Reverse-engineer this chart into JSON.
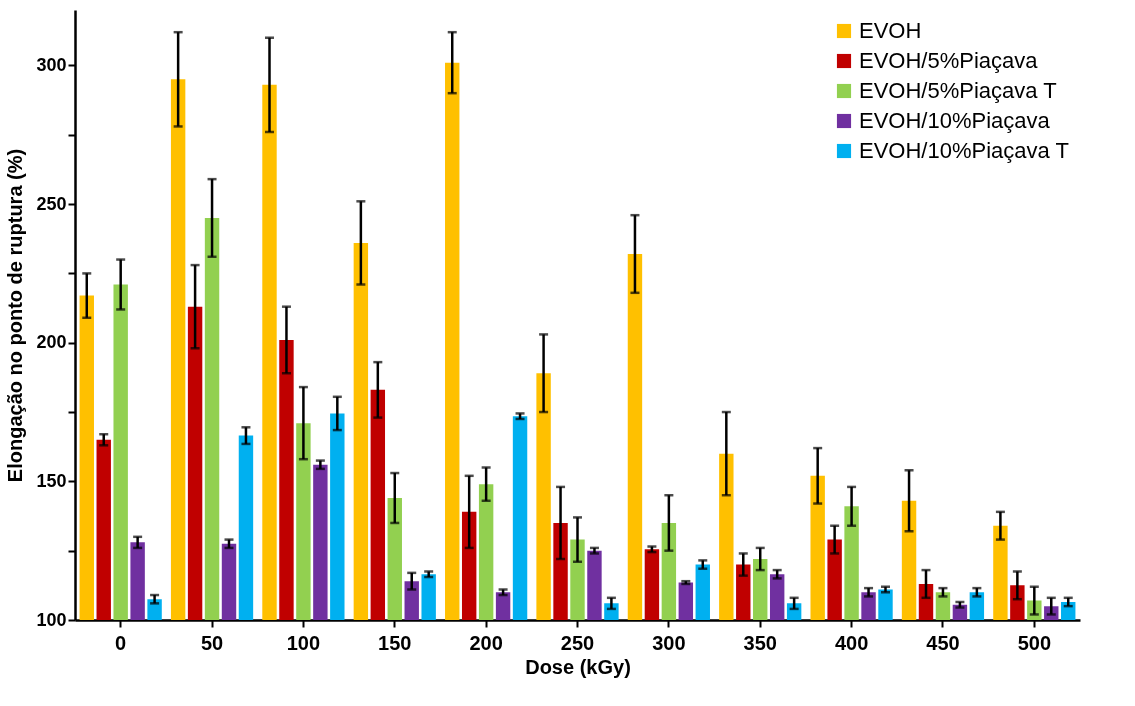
{
  "chart_data": {
    "type": "bar",
    "xlabel": "Dose (kGy)",
    "ylabel": "Elongação no ponto de ruptura (%)",
    "categories": [
      "0",
      "50",
      "100",
      "150",
      "200",
      "250",
      "300",
      "350",
      "400",
      "450",
      "500"
    ],
    "ylim": [
      100,
      320
    ],
    "yticks": [
      100,
      {
        "value": 125,
        "label": null
      },
      150,
      {
        "value": 175,
        "label": null
      },
      200,
      {
        "value": 225,
        "label": null
      },
      250,
      {
        "value": 275,
        "label": null
      },
      300
    ],
    "grid": false,
    "legend": "top right",
    "series": [
      {
        "name": "EVOH",
        "color": "#ffc000",
        "values": [
          217,
          295,
          293,
          236,
          301,
          189,
          232,
          160,
          152,
          143,
          134
        ],
        "errors": [
          8,
          17,
          17,
          15,
          11,
          14,
          14,
          15,
          10,
          11,
          5
        ]
      },
      {
        "name": "EVOH/5%Piaçava",
        "color": "#c00000",
        "values": [
          165,
          213,
          201,
          183,
          139,
          135,
          125.5,
          120,
          129,
          113,
          112.5
        ],
        "errors": [
          2,
          15,
          12,
          10,
          13,
          13,
          1,
          4,
          5,
          5,
          5
        ]
      },
      {
        "name": "EVOH/5%Piaçava T",
        "color": "#92d050",
        "values": [
          221,
          245,
          171,
          144,
          149,
          129,
          135,
          122,
          141,
          110,
          107
        ],
        "errors": [
          9,
          14,
          13,
          9,
          6,
          8,
          10,
          4,
          7,
          1.5,
          5
        ]
      },
      {
        "name": "EVOH/10%Piaçava",
        "color": "#7030a0",
        "values": [
          128,
          127.5,
          156,
          114,
          110,
          125,
          113.5,
          116.5,
          110,
          105.5,
          105
        ],
        "errors": [
          2,
          1.5,
          1.5,
          3,
          1,
          1,
          0.5,
          1.5,
          1.5,
          1,
          3
        ]
      },
      {
        "name": "EVOH/10%Piaçava T",
        "color": "#00b0f0",
        "values": [
          107.5,
          166.5,
          174.5,
          116.5,
          173.5,
          106,
          120,
          106,
          111,
          110,
          106.5
        ],
        "errors": [
          1.5,
          3,
          6,
          1,
          1,
          2,
          1.5,
          2,
          1,
          1.5,
          1.5
        ]
      }
    ]
  }
}
